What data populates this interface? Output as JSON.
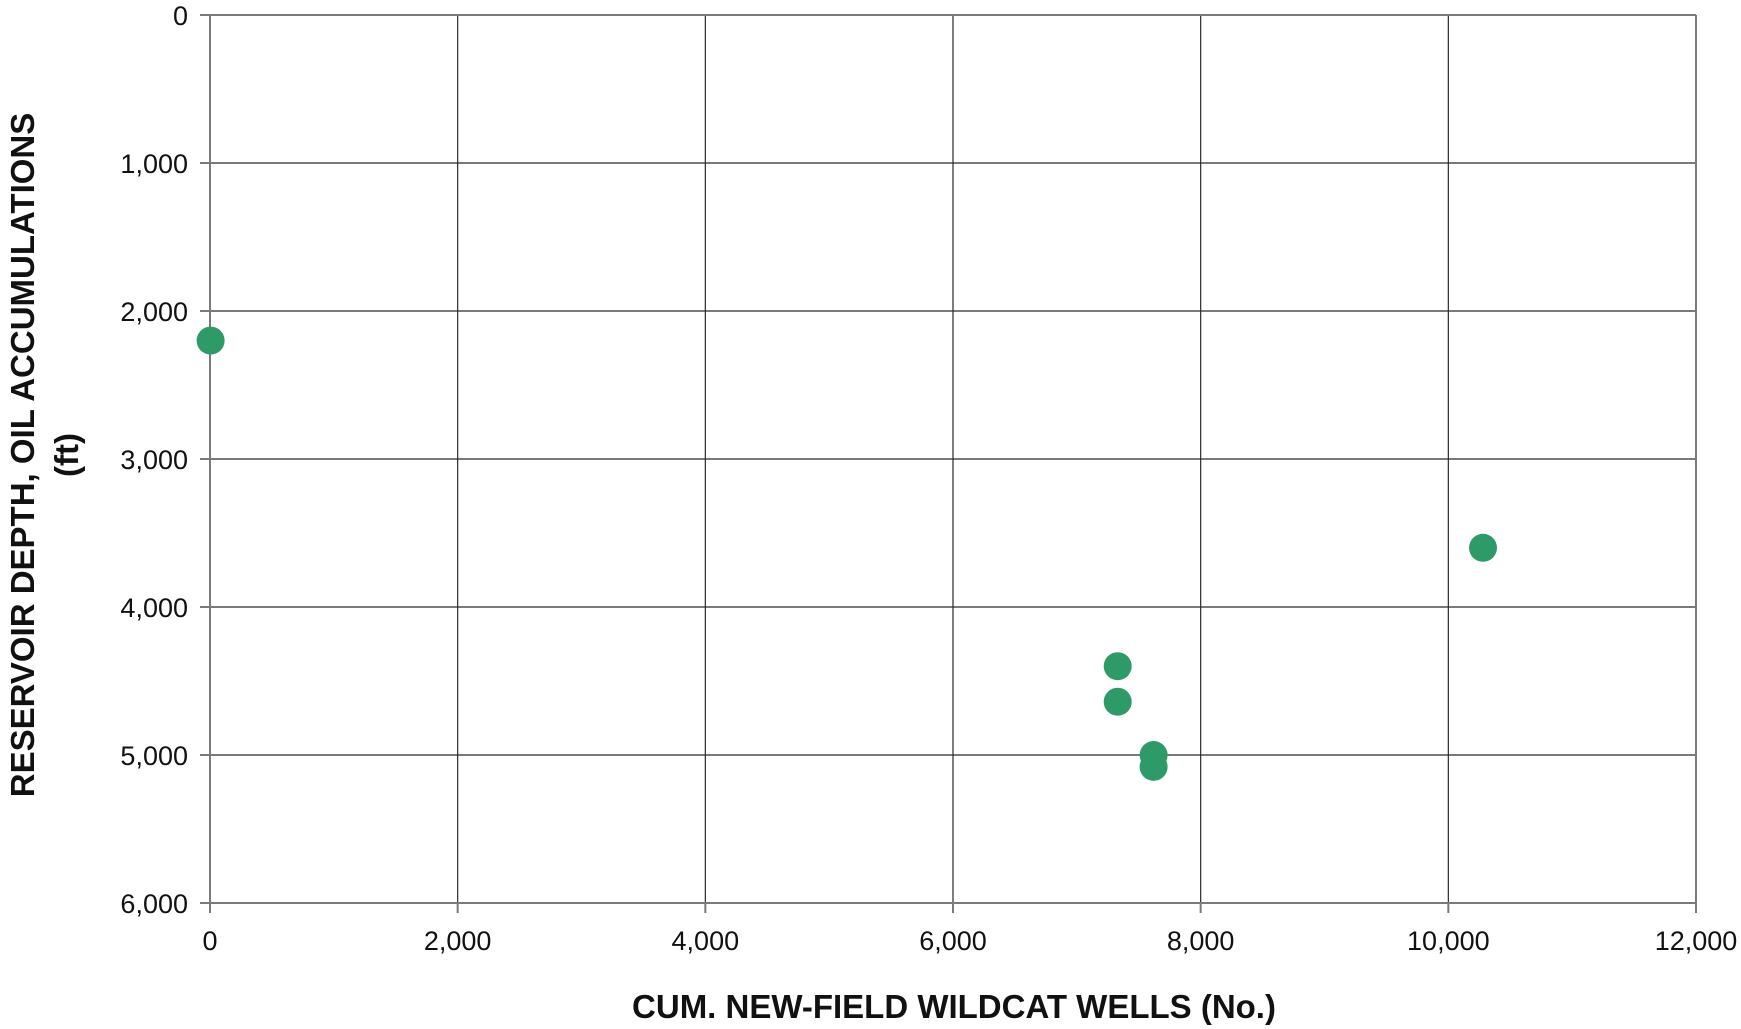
{
  "chart_data": {
    "type": "scatter",
    "title": "",
    "xlabel": "CUM. NEW-FIELD WILDCAT WELLS (No.)",
    "ylabel_lines": [
      "RESERVOIR DEPTH, OIL ACCUMULATIONS",
      "(ft)"
    ],
    "xlim": [
      0,
      12000
    ],
    "ylim": [
      0,
      6000
    ],
    "y_inverted": true,
    "grid": true,
    "x_ticks": [
      0,
      2000,
      4000,
      6000,
      8000,
      10000,
      12000
    ],
    "y_ticks": [
      0,
      1000,
      2000,
      3000,
      4000,
      5000,
      6000
    ],
    "x_tick_labels": [
      "0",
      "2,000",
      "4,000",
      "6,000",
      "8,000",
      "10,000",
      "12,000"
    ],
    "y_tick_labels": [
      "0",
      "1,000",
      "2,000",
      "3,000",
      "4,000",
      "5,000",
      "6,000"
    ],
    "marker_color": "#2e9a67",
    "points": [
      {
        "x": 5,
        "y": 2200
      },
      {
        "x": 7330,
        "y": 4400
      },
      {
        "x": 7330,
        "y": 4640
      },
      {
        "x": 7620,
        "y": 5000
      },
      {
        "x": 7620,
        "y": 5080
      },
      {
        "x": 10280,
        "y": 3600
      }
    ]
  }
}
